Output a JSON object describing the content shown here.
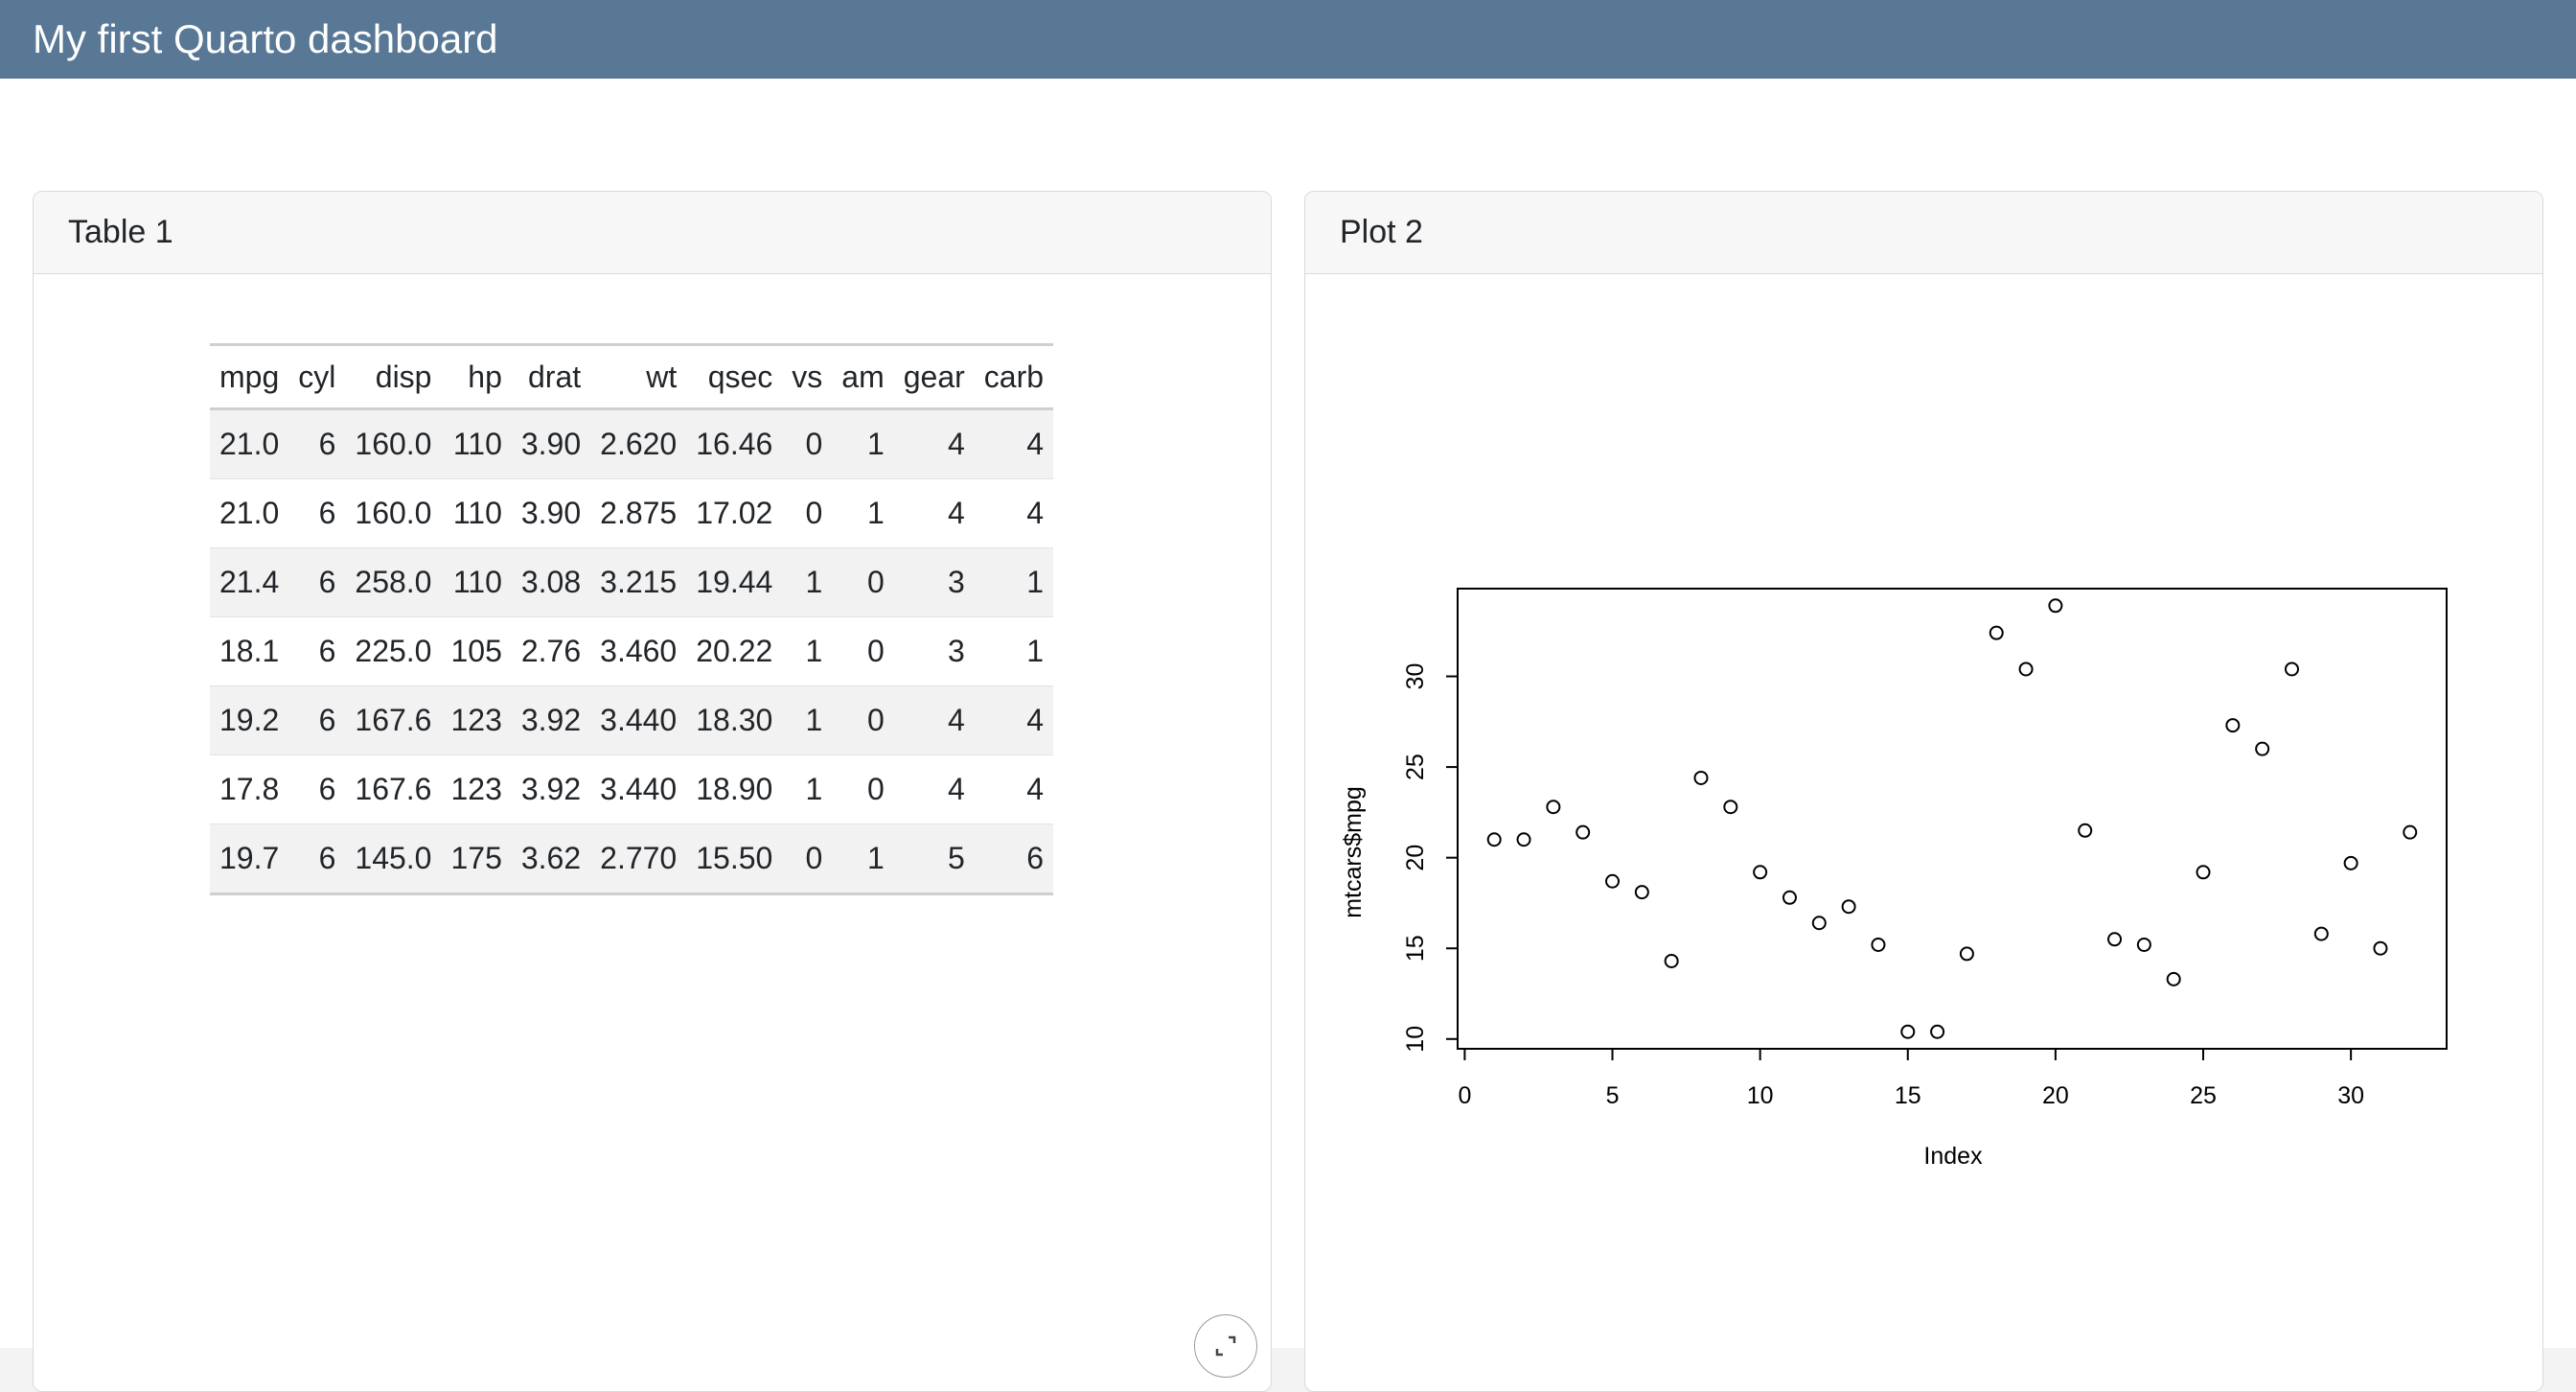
{
  "app": {
    "title": "My first Quarto dashboard"
  },
  "table_card": {
    "title": "Table 1",
    "columns": [
      "mpg",
      "cyl",
      "disp",
      "hp",
      "drat",
      "wt",
      "qsec",
      "vs",
      "am",
      "gear",
      "carb"
    ],
    "rows": [
      [
        "21.0",
        "6",
        "160.0",
        "110",
        "3.90",
        "2.620",
        "16.46",
        "0",
        "1",
        "4",
        "4"
      ],
      [
        "21.0",
        "6",
        "160.0",
        "110",
        "3.90",
        "2.875",
        "17.02",
        "0",
        "1",
        "4",
        "4"
      ],
      [
        "21.4",
        "6",
        "258.0",
        "110",
        "3.08",
        "3.215",
        "19.44",
        "1",
        "0",
        "3",
        "1"
      ],
      [
        "18.1",
        "6",
        "225.0",
        "105",
        "2.76",
        "3.460",
        "20.22",
        "1",
        "0",
        "3",
        "1"
      ],
      [
        "19.2",
        "6",
        "167.6",
        "123",
        "3.92",
        "3.440",
        "18.30",
        "1",
        "0",
        "4",
        "4"
      ],
      [
        "17.8",
        "6",
        "167.6",
        "123",
        "3.92",
        "3.440",
        "18.90",
        "1",
        "0",
        "4",
        "4"
      ],
      [
        "19.7",
        "6",
        "145.0",
        "175",
        "3.62",
        "2.770",
        "15.50",
        "0",
        "1",
        "5",
        "6"
      ]
    ],
    "expand_icon": "expand-icon"
  },
  "plot_card": {
    "title": "Plot 2"
  },
  "chart_data": {
    "type": "scatter",
    "title": "",
    "xlabel": "Index",
    "ylabel": "mtcars$mpg",
    "xlim": [
      1,
      32
    ],
    "ylim": [
      10.4,
      33.9
    ],
    "xticks": [
      0,
      5,
      10,
      15,
      20,
      25,
      30
    ],
    "yticks": [
      10,
      15,
      20,
      25,
      30
    ],
    "grid": false,
    "marker": "open-circle",
    "x": [
      1,
      2,
      3,
      4,
      5,
      6,
      7,
      8,
      9,
      10,
      11,
      12,
      13,
      14,
      15,
      16,
      17,
      18,
      19,
      20,
      21,
      22,
      23,
      24,
      25,
      26,
      27,
      28,
      29,
      30,
      31,
      32
    ],
    "y": [
      21.0,
      21.0,
      22.8,
      21.4,
      18.7,
      18.1,
      14.3,
      24.4,
      22.8,
      19.2,
      17.8,
      16.4,
      17.3,
      15.2,
      10.4,
      10.4,
      14.7,
      32.4,
      30.4,
      33.9,
      21.5,
      15.5,
      15.2,
      13.3,
      19.2,
      27.3,
      26.0,
      30.4,
      15.8,
      19.7,
      15.0,
      21.4
    ]
  }
}
